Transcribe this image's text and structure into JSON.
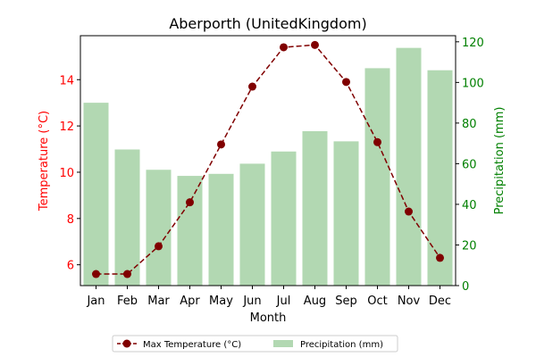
{
  "chart_data": {
    "type": "bar+line",
    "title": "Aberporth (UnitedKingdom)",
    "xlabel": "Month",
    "categories": [
      "Jan",
      "Feb",
      "Mar",
      "Apr",
      "May",
      "Jun",
      "Jul",
      "Aug",
      "Sep",
      "Oct",
      "Nov",
      "Dec"
    ],
    "left_axis": {
      "label": "Temperature (°C)",
      "color": "#ff0000",
      "ylim": [
        5.1,
        15.9
      ],
      "ticks": [
        6,
        8,
        10,
        12,
        14
      ]
    },
    "right_axis": {
      "label": "Precipitation (mm)",
      "color": "#008000",
      "ylim": [
        0,
        123
      ],
      "ticks": [
        0,
        20,
        40,
        60,
        80,
        100,
        120
      ]
    },
    "series": [
      {
        "name": "Max Temperature (°C)",
        "kind": "line",
        "axis": "left",
        "color": "#800000",
        "style": "dashed",
        "marker": "circle",
        "values": [
          5.6,
          5.6,
          6.8,
          8.7,
          11.2,
          13.7,
          15.4,
          15.5,
          13.9,
          11.3,
          8.3,
          6.3
        ]
      },
      {
        "name": "Precipitation (mm)",
        "kind": "bar",
        "axis": "right",
        "color": "#b2d8b2",
        "values": [
          90,
          67,
          57,
          54,
          55,
          60,
          66,
          76,
          71,
          107,
          117,
          106
        ]
      }
    ],
    "legend": {
      "placement": "bottom-center",
      "columns": 2
    },
    "grid": false
  }
}
